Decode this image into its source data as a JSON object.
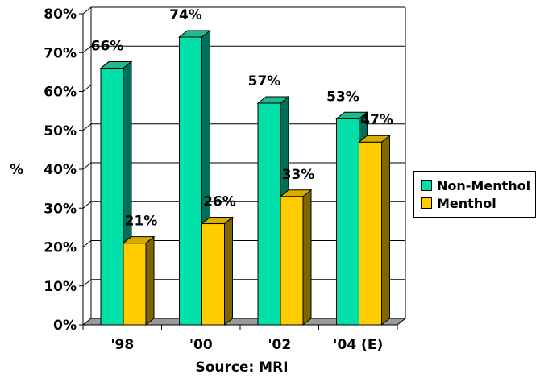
{
  "chart_data": {
    "type": "bar",
    "categories": [
      "'98",
      "'00",
      "'02",
      "'04 (E)"
    ],
    "series": [
      {
        "name": "Non-Menthol",
        "values": [
          66,
          74,
          57,
          53
        ],
        "labels": [
          "66%",
          "74%",
          "57%",
          "53%"
        ],
        "color": "#00E0A8",
        "side_color": "#00705A",
        "top_color": "#22B890"
      },
      {
        "name": "Menthol",
        "values": [
          21,
          26,
          33,
          47
        ],
        "labels": [
          "21%",
          "26%",
          "33%",
          "47%"
        ],
        "color": "#FFCC00",
        "side_color": "#806600",
        "top_color": "#D9AD00"
      }
    ],
    "ylabel": "%",
    "xlabel": "Source: MRI",
    "ylim": [
      0,
      80
    ],
    "yticks": [
      "0%",
      "10%",
      "20%",
      "30%",
      "40%",
      "50%",
      "60%",
      "70%",
      "80%"
    ],
    "grid": true,
    "legend": "right"
  }
}
